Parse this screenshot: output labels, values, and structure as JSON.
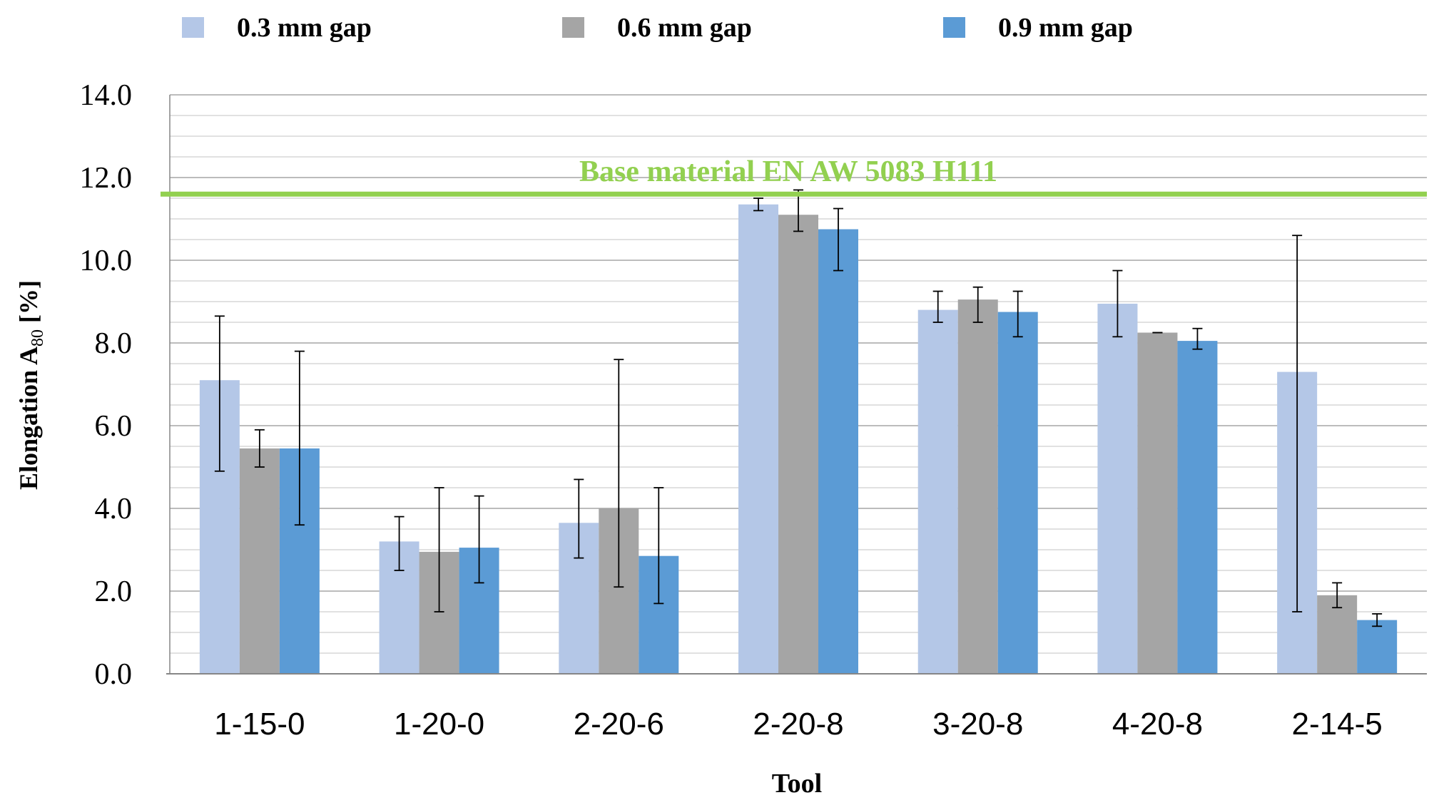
{
  "chart_data": {
    "type": "bar",
    "title": "",
    "xlabel": "Tool",
    "ylabel": "Elongation A",
    "ylabel_sub": "80",
    "ylabel_unit": " [%]",
    "ylim": [
      0,
      14
    ],
    "yticks": [
      0,
      2,
      4,
      6,
      8,
      10,
      12,
      14
    ],
    "ytick_labels": [
      "0.0",
      "2.0",
      "4.0",
      "6.0",
      "8.0",
      "10.0",
      "12.0",
      "14.0"
    ],
    "grid": "horizontal minor lines every 0.5",
    "legend_position": "top",
    "categories": [
      "1-15-0",
      "1-20-0",
      "2-20-6",
      "2-20-8",
      "3-20-8",
      "4-20-8",
      "2-14-5"
    ],
    "series": [
      {
        "name": "0.3 mm gap",
        "color": "#b4c7e7",
        "values": [
          7.1,
          3.2,
          3.65,
          11.35,
          8.8,
          8.95,
          7.3
        ],
        "err_low": [
          4.9,
          2.5,
          2.8,
          11.2,
          8.5,
          8.15,
          1.5
        ],
        "err_high": [
          8.65,
          3.8,
          4.7,
          11.5,
          9.25,
          9.75,
          10.6
        ]
      },
      {
        "name": "0.6 mm gap",
        "color": "#a5a5a5",
        "values": [
          5.45,
          2.95,
          4.0,
          11.1,
          9.05,
          8.25,
          1.9
        ],
        "err_low": [
          5.0,
          1.5,
          2.1,
          10.7,
          8.5,
          8.25,
          1.6
        ],
        "err_high": [
          5.9,
          4.5,
          7.6,
          11.7,
          9.35,
          8.25,
          2.2
        ]
      },
      {
        "name": "0.9 mm gap",
        "color": "#5b9bd5",
        "values": [
          5.45,
          3.05,
          2.85,
          10.75,
          8.75,
          8.05,
          1.3
        ],
        "err_low": [
          3.6,
          2.2,
          1.7,
          9.75,
          8.15,
          7.85,
          1.15
        ],
        "err_high": [
          7.8,
          4.3,
          4.5,
          11.25,
          9.25,
          8.35,
          1.45
        ]
      }
    ],
    "reference_line": {
      "label": "Base material EN AW 5083 H111",
      "value": 11.6,
      "color": "#92d050"
    }
  }
}
